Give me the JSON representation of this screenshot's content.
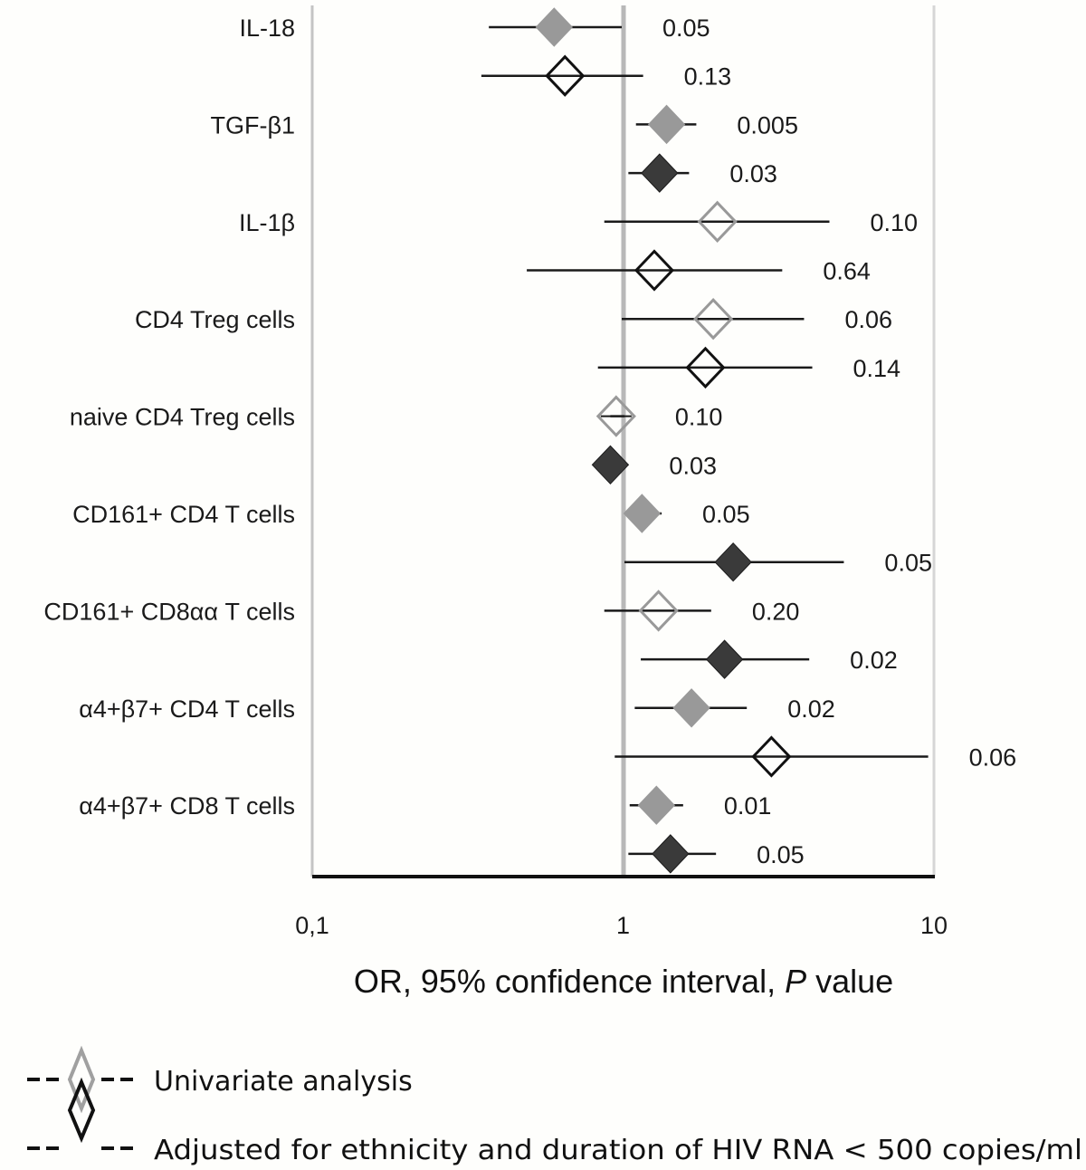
{
  "chart_data": {
    "type": "forest",
    "xlabel_prefix": "OR, 95% confidence interval, ",
    "xlabel_italic": "P",
    "xlabel_suffix": " value",
    "xscale": "log",
    "xlim": [
      0.1,
      10
    ],
    "reference_line": 1,
    "xticks": [
      {
        "value": 0.1,
        "label": "0,1"
      },
      {
        "value": 1,
        "label": "1"
      },
      {
        "value": 10,
        "label": "10"
      }
    ],
    "categories": [
      "IL-18",
      "TGF-β1",
      "IL-1β",
      "CD4 Treg cells",
      "naive CD4 Treg cells",
      "CD161+ CD4 T cells",
      "CD161+ CD8αα T cells",
      "α4+β7+  CD4 T cells",
      "α4+β7+  CD8 T cells"
    ],
    "series": [
      {
        "name": "Univariate analysis",
        "color": "#999999",
        "rows": [
          {
            "category": "IL-18",
            "or": 0.6,
            "lo": 0.37,
            "hi": 0.99,
            "p": "0.05",
            "significant": true
          },
          {
            "category": "TGF-β1",
            "or": 1.38,
            "lo": 1.1,
            "hi": 1.72,
            "p": "0.005",
            "significant": true
          },
          {
            "category": "IL-1β",
            "or": 2.01,
            "lo": 0.87,
            "hi": 4.61,
            "p": "0.10",
            "significant": false
          },
          {
            "category": "CD4 Treg cells",
            "or": 1.95,
            "lo": 0.99,
            "hi": 3.82,
            "p": "0.06",
            "significant": false
          },
          {
            "category": "naive CD4 Treg cells",
            "or": 0.95,
            "lo": 0.91,
            "hi": 1.01,
            "p": "0.10",
            "significant": false
          },
          {
            "category": "CD161+ CD4 T cells",
            "or": 1.15,
            "lo": 1.04,
            "hi": 1.33,
            "p": "0.05",
            "significant": true
          },
          {
            "category": "CD161+ CD8αα T cells",
            "or": 1.3,
            "lo": 0.87,
            "hi": 1.92,
            "p": "0.20",
            "significant": false
          },
          {
            "category": "α4+β7+  CD4 T cells",
            "or": 1.66,
            "lo": 1.09,
            "hi": 2.5,
            "p": "0.02",
            "significant": true
          },
          {
            "category": "α4+β7+  CD8 T cells",
            "or": 1.28,
            "lo": 1.05,
            "hi": 1.56,
            "p": "0.01",
            "significant": true
          }
        ]
      },
      {
        "name": "Adjusted for ethnicity and duration of HIV RNA < 500 copies/ml",
        "color": "#111111",
        "rows": [
          {
            "category": "IL-18",
            "or": 0.65,
            "lo": 0.35,
            "hi": 1.16,
            "p": "0.13",
            "significant": false
          },
          {
            "category": "TGF-β1",
            "or": 1.31,
            "lo": 1.04,
            "hi": 1.63,
            "p": "0.03",
            "significant": true
          },
          {
            "category": "IL-1β",
            "or": 1.26,
            "lo": 0.49,
            "hi": 3.25,
            "p": "0.64",
            "significant": false
          },
          {
            "category": "CD4 Treg cells",
            "or": 1.84,
            "lo": 0.83,
            "hi": 4.06,
            "p": "0.14",
            "significant": false
          },
          {
            "category": "naive CD4 Treg cells",
            "or": 0.91,
            "lo": 0.9,
            "hi": 0.92,
            "p": "0.03",
            "significant": true
          },
          {
            "category": "CD161+ CD4 T cells",
            "or": 2.26,
            "lo": 1.01,
            "hi": 5.13,
            "p": "0.05",
            "significant": true
          },
          {
            "category": "CD161+ CD8αα T cells",
            "or": 2.12,
            "lo": 1.14,
            "hi": 3.97,
            "p": "0.02",
            "significant": true
          },
          {
            "category": "α4+β7+  CD4 T cells",
            "or": 3.0,
            "lo": 0.94,
            "hi": 9.58,
            "p": "0.06",
            "significant": false
          },
          {
            "category": "α4+β7+  CD8 T cells",
            "or": 1.42,
            "lo": 1.04,
            "hi": 1.99,
            "p": "0.05",
            "significant": true
          }
        ]
      }
    ],
    "fill_colors": {
      "univariate_significant": "#999999",
      "adjusted_significant": "#3a3a3a"
    },
    "legend": {
      "placement": "bottom-left",
      "entries": [
        {
          "label": "Univariate analysis",
          "color": "#999999"
        },
        {
          "label": "Adjusted for ethnicity and duration of HIV RNA < 500 copies/ml",
          "color": "#111111"
        }
      ]
    }
  }
}
